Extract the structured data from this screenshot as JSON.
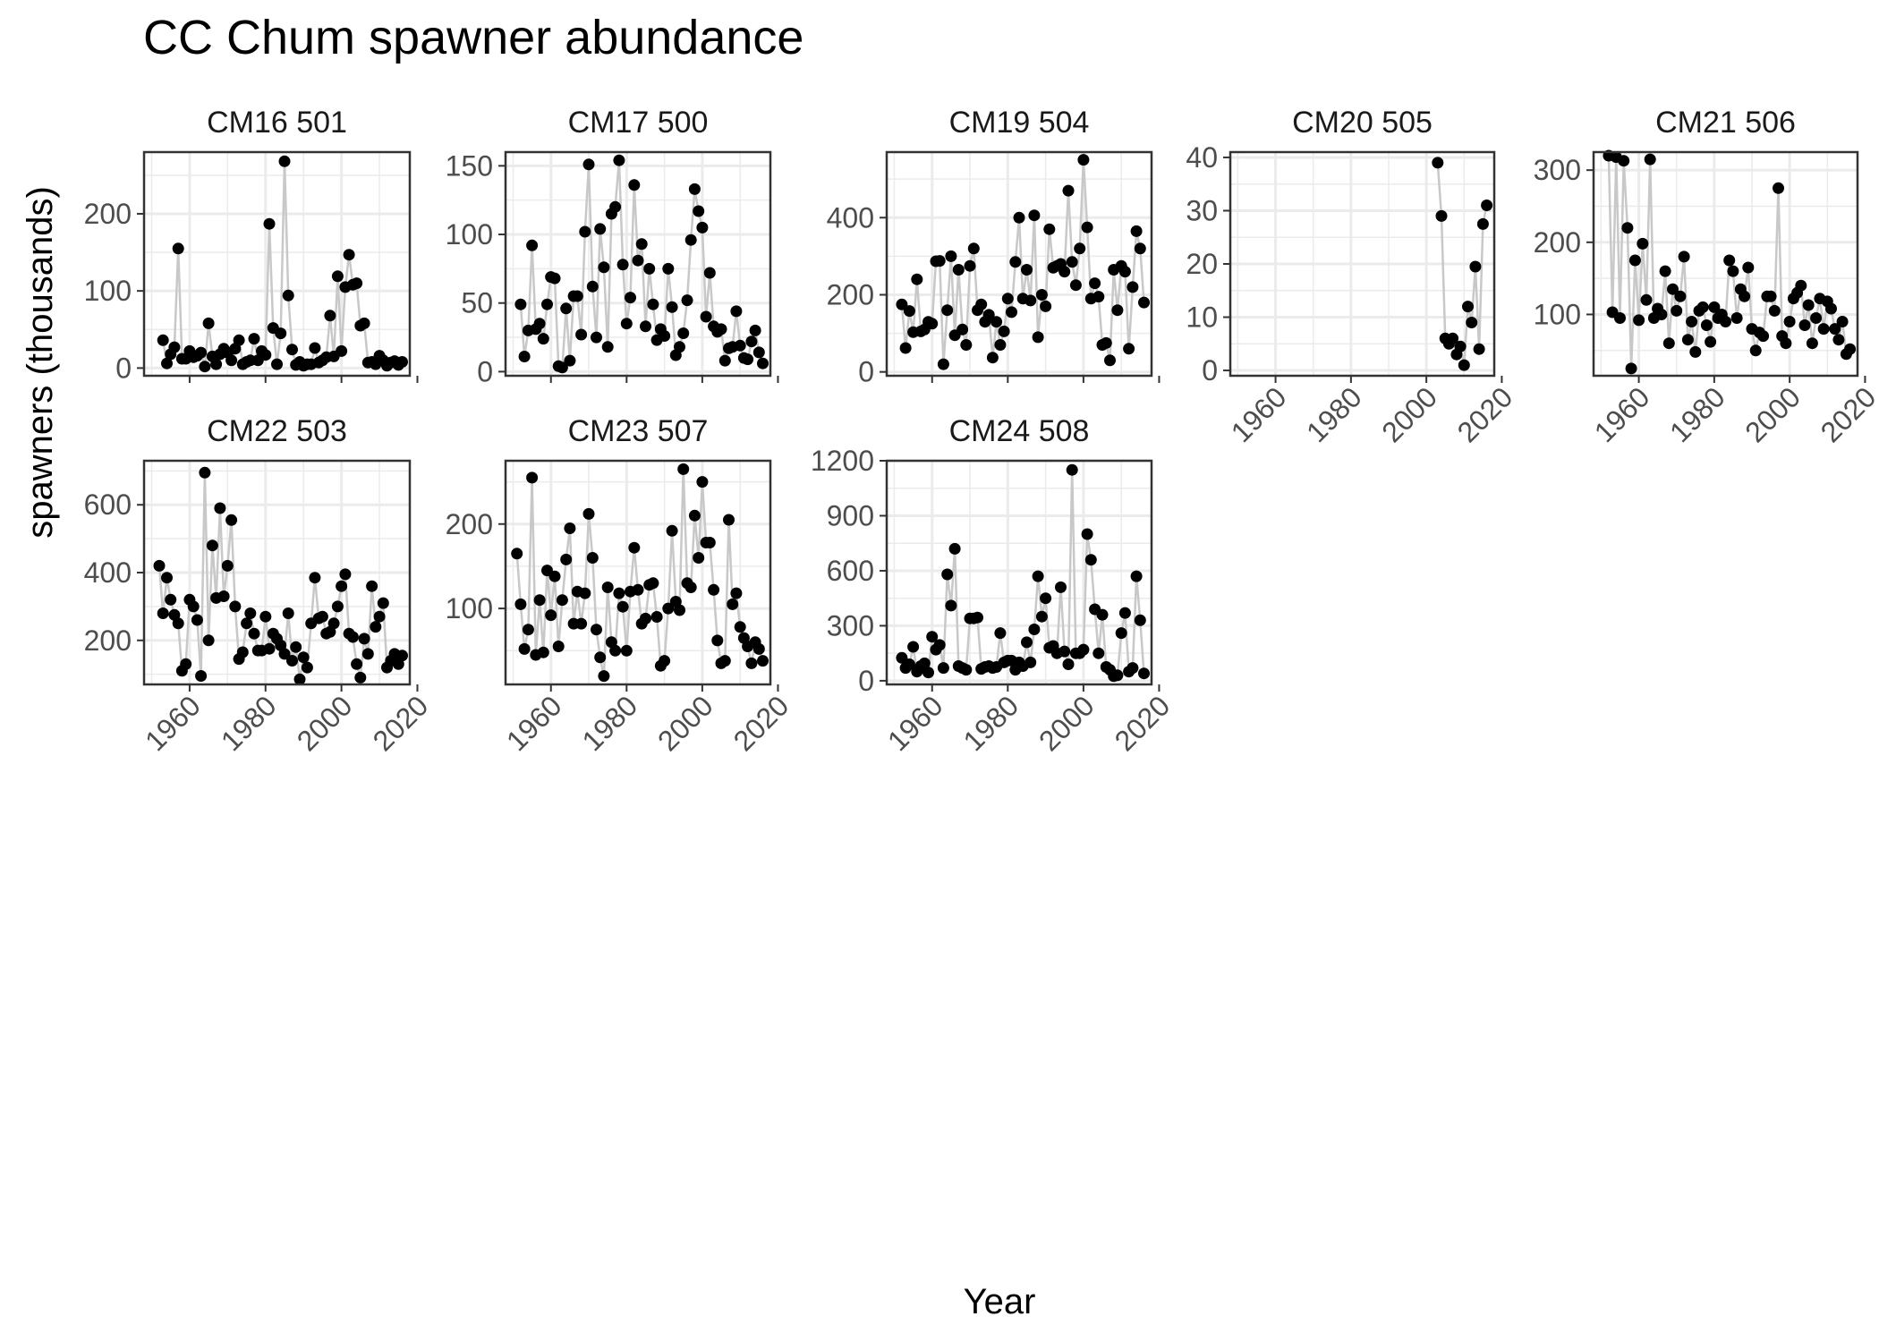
{
  "chart_data": {
    "type": "scatter",
    "title": "CC Chum spawner abundance",
    "xlabel": "Year",
    "ylabel": "spawners (thousands)",
    "xlim": [
      1948,
      2018
    ],
    "x_ticks": [
      1960,
      1980,
      2000,
      2020
    ],
    "grid": true,
    "legend": "none",
    "colors": {
      "line": "#c8c8c8",
      "point": "#000000",
      "panel_border": "#333333",
      "grid": "#ebebeb"
    },
    "panels": [
      {
        "name": "CM16 501",
        "ylim": [
          -10,
          280
        ],
        "y_ticks": [
          0,
          100,
          200
        ],
        "x": [
          1953,
          1954,
          1955,
          1956,
          1957,
          1958,
          1959,
          1960,
          1961,
          1962,
          1963,
          1964,
          1965,
          1966,
          1967,
          1968,
          1969,
          1970,
          1971,
          1972,
          1973,
          1974,
          1975,
          1976,
          1977,
          1978,
          1979,
          1980,
          1981,
          1982,
          1983,
          1984,
          1985,
          1986,
          1987,
          1988,
          1989,
          1990,
          1991,
          1992,
          1993,
          1994,
          1995,
          1996,
          1997,
          1998,
          1999,
          2000,
          2001,
          2002,
          2003,
          2004,
          2005,
          2006,
          2007,
          2008,
          2009,
          2010,
          2011,
          2012,
          2013,
          2014,
          2015,
          2016
        ],
        "y": [
          36,
          6,
          18,
          27,
          155,
          12,
          12,
          22,
          14,
          16,
          20,
          2,
          58,
          15,
          5,
          18,
          25,
          20,
          10,
          25,
          36,
          5,
          8,
          10,
          38,
          10,
          22,
          17,
          187,
          52,
          5,
          45,
          268,
          94,
          24,
          4,
          8,
          3,
          5,
          5,
          26,
          7,
          10,
          14,
          68,
          15,
          119,
          22,
          105,
          147,
          108,
          110,
          55,
          58,
          7,
          8,
          5,
          16,
          10,
          3,
          7,
          9,
          4,
          8
        ]
      },
      {
        "name": "CM17 500",
        "ylim": [
          -3,
          160
        ],
        "y_ticks": [
          0,
          50,
          100,
          150
        ],
        "x": [
          1952,
          1953,
          1954,
          1955,
          1956,
          1957,
          1958,
          1959,
          1960,
          1961,
          1962,
          1963,
          1964,
          1965,
          1966,
          1967,
          1968,
          1969,
          1970,
          1971,
          1972,
          1973,
          1974,
          1975,
          1976,
          1977,
          1978,
          1979,
          1980,
          1981,
          1982,
          1983,
          1984,
          1985,
          1986,
          1987,
          1988,
          1989,
          1990,
          1991,
          1992,
          1993,
          1994,
          1995,
          1996,
          1997,
          1998,
          1999,
          2000,
          2001,
          2002,
          2003,
          2004,
          2005,
          2006,
          2007,
          2008,
          2009,
          2010,
          2011,
          2012,
          2013,
          2014,
          2015,
          2016
        ],
        "y": [
          49,
          11,
          30,
          92,
          31,
          35,
          24,
          49,
          69,
          68,
          4,
          3,
          46,
          8,
          55,
          55,
          27,
          102,
          151,
          62,
          25,
          104,
          76,
          18,
          115,
          120,
          154,
          78,
          35,
          54,
          136,
          81,
          93,
          33,
          75,
          49,
          23,
          31,
          26,
          75,
          47,
          12,
          18,
          28,
          52,
          96,
          133,
          117,
          105,
          40,
          72,
          33,
          29,
          31,
          8,
          17,
          18,
          44,
          19,
          10,
          9,
          22,
          30,
          14,
          6
        ]
      },
      {
        "name": "CM19 504",
        "ylim": [
          -10,
          570
        ],
        "y_ticks": [
          0,
          200,
          400
        ],
        "x": [
          1952,
          1953,
          1954,
          1955,
          1956,
          1957,
          1958,
          1959,
          1960,
          1961,
          1962,
          1963,
          1964,
          1965,
          1966,
          1967,
          1968,
          1969,
          1970,
          1971,
          1972,
          1973,
          1974,
          1975,
          1976,
          1977,
          1978,
          1979,
          1980,
          1981,
          1982,
          1983,
          1984,
          1985,
          1986,
          1987,
          1988,
          1989,
          1990,
          1991,
          1992,
          1993,
          1994,
          1995,
          1996,
          1997,
          1998,
          1999,
          2000,
          2001,
          2002,
          2003,
          2004,
          2005,
          2006,
          2007,
          2008,
          2009,
          2010,
          2011,
          2012,
          2013,
          2014,
          2015,
          2016
        ],
        "y": [
          175,
          62,
          158,
          103,
          240,
          105,
          110,
          130,
          125,
          287,
          288,
          20,
          160,
          300,
          95,
          265,
          110,
          70,
          275,
          320,
          160,
          175,
          130,
          148,
          37,
          130,
          70,
          105,
          190,
          155,
          285,
          400,
          190,
          265,
          185,
          406,
          90,
          200,
          170,
          370,
          270,
          275,
          280,
          260,
          470,
          285,
          225,
          320,
          550,
          375,
          190,
          230,
          195,
          70,
          75,
          30,
          265,
          160,
          275,
          260,
          60,
          220,
          365,
          320,
          180
        ]
      },
      {
        "name": "CM20 505",
        "ylim": [
          -1,
          41
        ],
        "y_ticks": [
          0,
          10,
          20,
          30,
          40
        ],
        "x": [
          2003,
          2004,
          2005,
          2006,
          2007,
          2008,
          2009,
          2010,
          2011,
          2012,
          2013,
          2014,
          2015,
          2016
        ],
        "y": [
          39,
          29,
          6,
          5,
          6,
          3,
          4.5,
          1,
          12,
          9,
          19.5,
          4,
          27.5,
          31
        ]
      },
      {
        "name": "CM21 506",
        "ylim": [
          15,
          325
        ],
        "y_ticks": [
          100,
          200,
          300
        ],
        "x": [
          1952,
          1953,
          1954,
          1955,
          1956,
          1957,
          1958,
          1959,
          1960,
          1961,
          1962,
          1963,
          1964,
          1965,
          1966,
          1967,
          1968,
          1969,
          1970,
          1971,
          1972,
          1973,
          1974,
          1975,
          1976,
          1977,
          1978,
          1979,
          1980,
          1981,
          1982,
          1983,
          1984,
          1985,
          1986,
          1987,
          1988,
          1989,
          1990,
          1991,
          1992,
          1993,
          1994,
          1995,
          1996,
          1997,
          1998,
          1999,
          2000,
          2001,
          2002,
          2003,
          2004,
          2005,
          2006,
          2007,
          2008,
          2009,
          2010,
          2011,
          2012,
          2013,
          2014,
          2015,
          2016
        ],
        "y": [
          320,
          103,
          318,
          95,
          313,
          220,
          25,
          175,
          92,
          198,
          120,
          315,
          95,
          108,
          100,
          160,
          60,
          135,
          105,
          125,
          180,
          65,
          90,
          48,
          105,
          110,
          85,
          62,
          110,
          95,
          100,
          90,
          175,
          160,
          95,
          135,
          125,
          165,
          80,
          50,
          75,
          70,
          125,
          125,
          105,
          275,
          70,
          60,
          90,
          122,
          130,
          140,
          85,
          113,
          60,
          95,
          122,
          80,
          118,
          108,
          80,
          65,
          90,
          45,
          52
        ]
      },
      {
        "name": "CM22 503",
        "ylim": [
          70,
          730
        ],
        "y_ticks": [
          200,
          400,
          600
        ],
        "x": [
          1952,
          1953,
          1954,
          1955,
          1956,
          1957,
          1958,
          1959,
          1960,
          1961,
          1962,
          1963,
          1964,
          1965,
          1966,
          1967,
          1968,
          1969,
          1970,
          1971,
          1972,
          1973,
          1974,
          1975,
          1976,
          1977,
          1978,
          1979,
          1980,
          1981,
          1982,
          1983,
          1984,
          1985,
          1986,
          1987,
          1988,
          1989,
          1990,
          1991,
          1992,
          1993,
          1994,
          1995,
          1996,
          1997,
          1998,
          1999,
          2000,
          2001,
          2002,
          2003,
          2004,
          2005,
          2006,
          2007,
          2008,
          2009,
          2010,
          2011,
          2012,
          2013,
          2014,
          2015,
          2016
        ],
        "y": [
          420,
          280,
          385,
          320,
          275,
          250,
          110,
          130,
          320,
          300,
          260,
          95,
          695,
          200,
          480,
          325,
          590,
          330,
          420,
          555,
          300,
          145,
          165,
          250,
          280,
          220,
          170,
          170,
          270,
          175,
          220,
          205,
          185,
          160,
          280,
          140,
          180,
          85,
          150,
          120,
          250,
          385,
          265,
          270,
          220,
          225,
          250,
          300,
          360,
          395,
          220,
          210,
          130,
          90,
          205,
          160,
          360,
          240,
          270,
          310,
          120,
          140,
          160,
          130,
          155
        ]
      },
      {
        "name": "CM23 507",
        "ylim": [
          10,
          275
        ],
        "y_ticks": [
          100,
          200
        ],
        "x": [
          1951,
          1952,
          1953,
          1954,
          1955,
          1956,
          1957,
          1958,
          1959,
          1960,
          1961,
          1962,
          1963,
          1964,
          1965,
          1966,
          1967,
          1968,
          1969,
          1970,
          1971,
          1972,
          1973,
          1974,
          1975,
          1976,
          1977,
          1978,
          1979,
          1980,
          1981,
          1982,
          1983,
          1984,
          1985,
          1986,
          1987,
          1988,
          1989,
          1990,
          1991,
          1992,
          1993,
          1994,
          1995,
          1996,
          1997,
          1998,
          1999,
          2000,
          2001,
          2002,
          2003,
          2004,
          2005,
          2006,
          2007,
          2008,
          2009,
          2010,
          2011,
          2012,
          2013,
          2014,
          2015,
          2016
        ],
        "y": [
          165,
          105,
          52,
          75,
          255,
          45,
          110,
          48,
          145,
          92,
          138,
          55,
          110,
          158,
          195,
          82,
          120,
          82,
          118,
          212,
          160,
          75,
          42,
          20,
          125,
          60,
          50,
          118,
          102,
          50,
          120,
          172,
          122,
          82,
          88,
          128,
          130,
          90,
          32,
          38,
          100,
          192,
          108,
          98,
          265,
          130,
          125,
          210,
          160,
          250,
          178,
          178,
          122,
          62,
          35,
          38,
          205,
          105,
          118,
          78,
          65,
          55,
          35,
          60,
          52,
          38
        ]
      },
      {
        "name": "CM24 508",
        "ylim": [
          -20,
          1200
        ],
        "y_ticks": [
          0,
          300,
          600,
          900,
          1200
        ],
        "x": [
          1952,
          1953,
          1954,
          1955,
          1956,
          1957,
          1958,
          1959,
          1960,
          1961,
          1962,
          1963,
          1964,
          1965,
          1966,
          1967,
          1968,
          1969,
          1970,
          1971,
          1972,
          1973,
          1974,
          1975,
          1976,
          1977,
          1978,
          1979,
          1980,
          1981,
          1982,
          1983,
          1984,
          1985,
          1986,
          1987,
          1988,
          1989,
          1990,
          1991,
          1992,
          1993,
          1994,
          1995,
          1996,
          1997,
          1998,
          1999,
          2000,
          2001,
          2002,
          2003,
          2004,
          2005,
          2006,
          2007,
          2008,
          2009,
          2010,
          2011,
          2012,
          2013,
          2014,
          2015,
          2016
        ],
        "y": [
          125,
          70,
          90,
          185,
          50,
          80,
          95,
          45,
          240,
          170,
          195,
          70,
          580,
          410,
          720,
          80,
          70,
          60,
          340,
          340,
          345,
          65,
          75,
          80,
          70,
          75,
          260,
          100,
          110,
          110,
          60,
          100,
          80,
          210,
          100,
          280,
          570,
          350,
          450,
          180,
          190,
          150,
          510,
          160,
          90,
          1150,
          150,
          150,
          170,
          800,
          660,
          390,
          150,
          360,
          75,
          60,
          25,
          30,
          260,
          370,
          50,
          70,
          570,
          330,
          40
        ]
      }
    ]
  }
}
